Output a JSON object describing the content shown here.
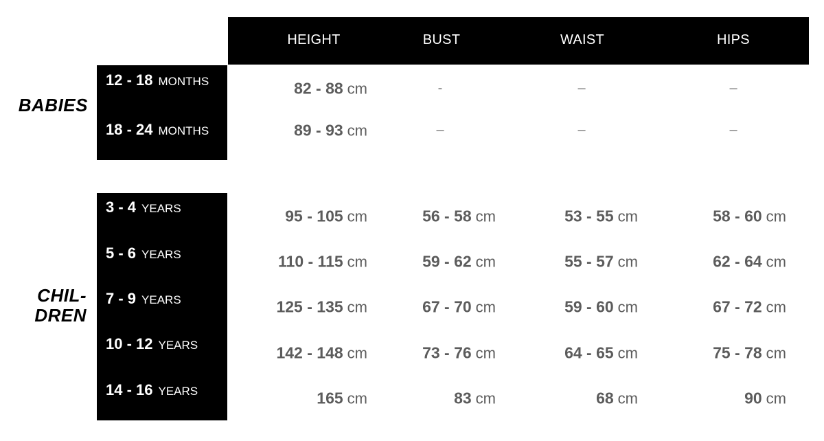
{
  "columns": [
    "HEIGHT",
    "BUST",
    "WAIST",
    "HIPS"
  ],
  "groups": [
    {
      "label": "BABIES",
      "rows": [
        {
          "age": "12 - 18",
          "unit": "MONTHS",
          "values": [
            {
              "num": "82 - 88",
              "unit": "cm"
            },
            {
              "num": "-"
            },
            {
              "num": "–"
            },
            {
              "num": "–"
            }
          ]
        },
        {
          "age": "18 - 24",
          "unit": "MONTHS",
          "values": [
            {
              "num": "89 - 93",
              "unit": "cm"
            },
            {
              "num": "–"
            },
            {
              "num": "–"
            },
            {
              "num": "–"
            }
          ]
        }
      ]
    },
    {
      "label": "CHIL-\nDREN",
      "label_lines": [
        "CHIL-",
        "DREN"
      ],
      "rows": [
        {
          "age": "3 - 4",
          "unit": "YEARS",
          "values": [
            {
              "num": "95 - 105",
              "unit": "cm"
            },
            {
              "num": "56 - 58",
              "unit": "cm"
            },
            {
              "num": "53 - 55",
              "unit": "cm"
            },
            {
              "num": "58 - 60",
              "unit": "cm"
            }
          ]
        },
        {
          "age": "5 - 6",
          "unit": "YEARS",
          "values": [
            {
              "num": "110 - 115",
              "unit": "cm"
            },
            {
              "num": "59 - 62",
              "unit": "cm"
            },
            {
              "num": "55 - 57",
              "unit": "cm"
            },
            {
              "num": "62 - 64",
              "unit": "cm"
            }
          ]
        },
        {
          "age": "7 - 9",
          "unit": "YEARS",
          "values": [
            {
              "num": "125 - 135",
              "unit": "cm"
            },
            {
              "num": "67 - 70",
              "unit": "cm"
            },
            {
              "num": "59 - 60",
              "unit": "cm"
            },
            {
              "num": "67 - 72",
              "unit": "cm"
            }
          ]
        },
        {
          "age": "10 - 12",
          "unit": "YEARS",
          "values": [
            {
              "num": "142 - 148",
              "unit": "cm"
            },
            {
              "num": "73 - 76",
              "unit": "cm"
            },
            {
              "num": "64 - 65",
              "unit": "cm"
            },
            {
              "num": "75 - 78",
              "unit": "cm"
            }
          ]
        },
        {
          "age": "14 - 16",
          "unit": "YEARS",
          "values": [
            {
              "num": "165",
              "unit": "cm"
            },
            {
              "num": "83",
              "unit": "cm"
            },
            {
              "num": "68",
              "unit": "cm"
            },
            {
              "num": "90",
              "unit": "cm"
            }
          ]
        }
      ]
    }
  ]
}
